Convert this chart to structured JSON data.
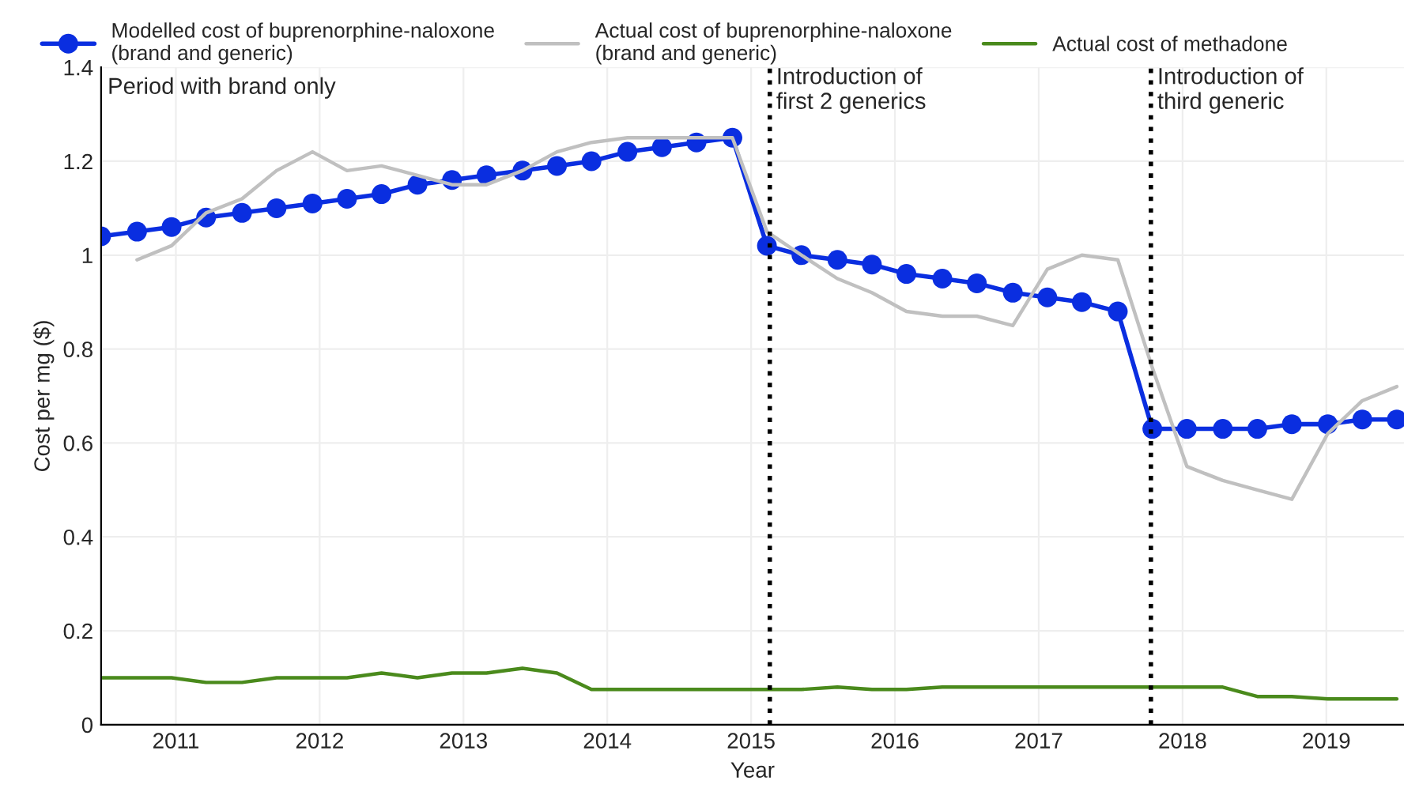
{
  "chart_data": {
    "type": "line",
    "xlabel": "Year",
    "ylabel": "Cost per mg ($)",
    "annotations": [
      "Period with brand only"
    ],
    "xlim": [
      2010.48,
      2019.54
    ],
    "xticks": [
      2011,
      2012,
      2013,
      2014,
      2015,
      2016,
      2017,
      2018,
      2019
    ],
    "ylim": [
      0,
      1.4
    ],
    "yticks": [
      0,
      0.2,
      0.4,
      0.6,
      0.8,
      {
        "value": 1,
        "label": "1"
      },
      1.2,
      1.4
    ],
    "grid": true,
    "legend": "top",
    "ref_lines": [
      {
        "axis": "x",
        "value": 2015.13,
        "label": "Introduction of\nfirst 2 generics",
        "color": "#000000",
        "line_style": "dotted"
      },
      {
        "axis": "x",
        "value": 2017.78,
        "label": "Introduction of\nthird generic",
        "color": "#000000",
        "line_style": "dotted"
      }
    ],
    "x": [
      2010.48,
      2010.73,
      2010.97,
      2011.21,
      2011.46,
      2011.7,
      2011.95,
      2012.19,
      2012.43,
      2012.68,
      2012.92,
      2013.16,
      2013.41,
      2013.65,
      2013.89,
      2014.14,
      2014.38,
      2014.62,
      2014.87,
      2015.11,
      2015.35,
      2015.6,
      2015.84,
      2016.08,
      2016.33,
      2016.57,
      2016.82,
      2017.06,
      2017.3,
      2017.55,
      2017.79,
      2018.03,
      2018.28,
      2018.52,
      2018.76,
      2019.01,
      2019.25,
      2019.49
    ],
    "series": [
      {
        "name": "Modelled cost of buprenorphine-naloxone\n(brand and generic)",
        "color": "#0a2ee0",
        "marker": "circle",
        "values": [
          1.04,
          1.05,
          1.06,
          1.08,
          1.09,
          1.1,
          1.11,
          1.12,
          1.13,
          1.15,
          1.16,
          1.17,
          1.18,
          1.19,
          1.2,
          1.22,
          1.23,
          1.24,
          1.25,
          1.02,
          1.0,
          0.99,
          0.98,
          0.96,
          0.95,
          0.94,
          0.92,
          0.91,
          0.9,
          0.88,
          0.63,
          0.63,
          0.63,
          0.63,
          0.64,
          0.64,
          0.65,
          0.65
        ]
      },
      {
        "name": "Actual cost of buprenorphine-naloxone\n(brand and generic)",
        "color": "#c0c0c0",
        "values": [
          null,
          0.99,
          1.02,
          1.09,
          1.12,
          1.18,
          1.22,
          1.18,
          1.19,
          1.17,
          1.15,
          1.15,
          1.18,
          1.22,
          1.24,
          1.25,
          1.25,
          1.25,
          1.25,
          1.05,
          1.0,
          0.95,
          0.92,
          0.88,
          0.87,
          0.87,
          0.85,
          0.97,
          1.0,
          0.99,
          0.76,
          0.55,
          0.52,
          0.5,
          0.48,
          0.62,
          0.69,
          0.72
        ]
      },
      {
        "name": "Actual cost of methadone",
        "color": "#4a8a1c",
        "values": [
          0.1,
          0.1,
          0.1,
          0.09,
          0.09,
          0.1,
          0.1,
          0.1,
          0.11,
          0.1,
          0.11,
          0.11,
          0.12,
          0.11,
          0.075,
          0.075,
          0.075,
          0.075,
          0.075,
          0.075,
          0.075,
          0.08,
          0.075,
          0.075,
          0.08,
          0.08,
          0.08,
          0.08,
          0.08,
          0.08,
          0.08,
          0.08,
          0.08,
          0.06,
          0.06,
          0.055,
          0.055,
          0.055
        ]
      }
    ]
  }
}
